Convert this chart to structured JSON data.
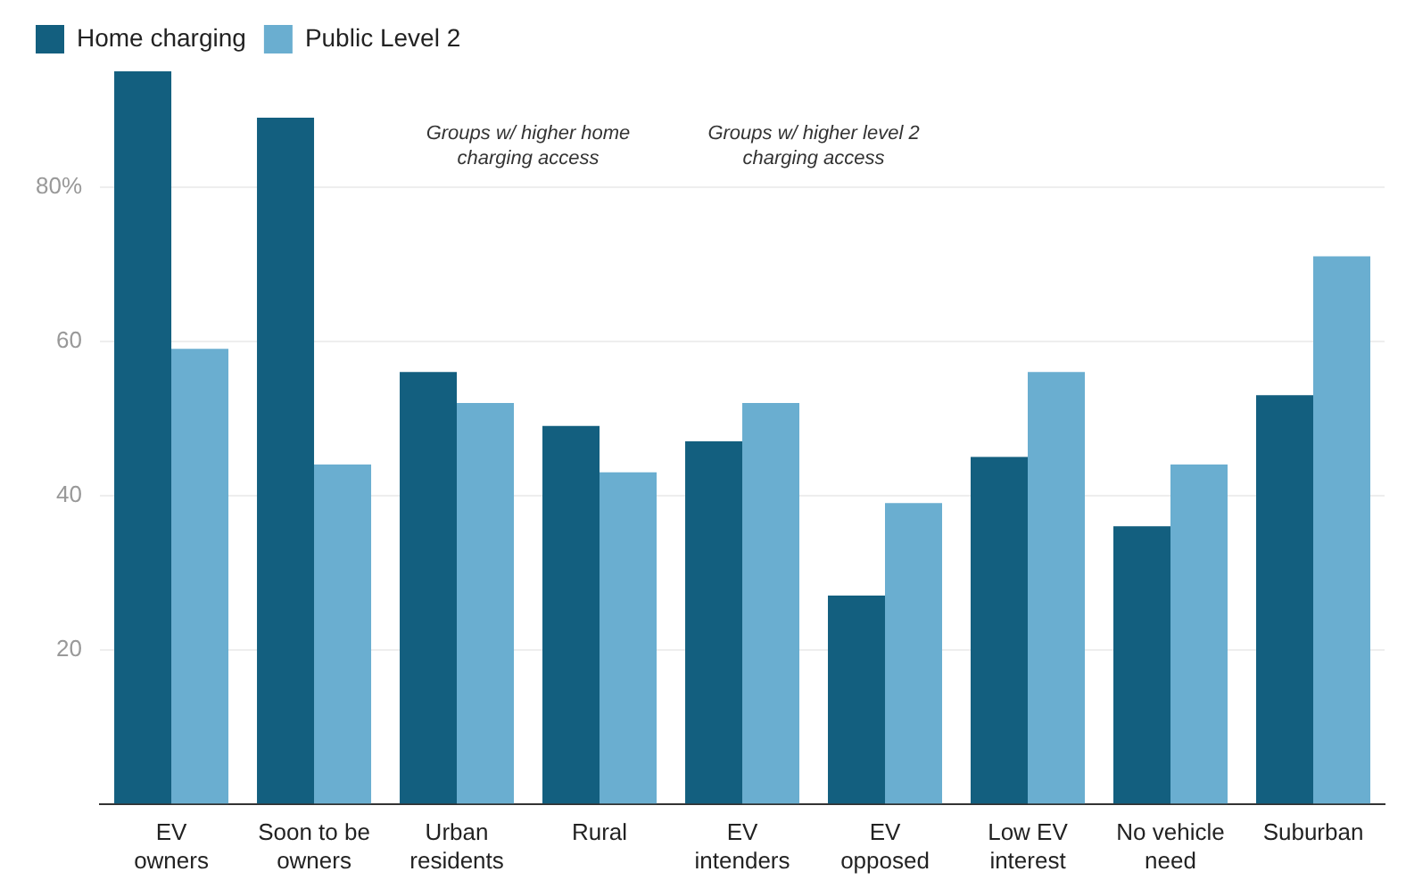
{
  "chart_data": {
    "type": "bar",
    "categories": [
      "EV owners",
      "Soon to be owners",
      "Urban residents",
      "Rural",
      "EV intenders",
      "EV opposed",
      "Low EV interest",
      "No vehicle need",
      "Suburban"
    ],
    "series": [
      {
        "name": "Home charging",
        "color": "#135f7f",
        "values": [
          95,
          89,
          56,
          49,
          47,
          27,
          45,
          36,
          53
        ]
      },
      {
        "name": "Public Level 2",
        "color": "#6aaed0",
        "values": [
          59,
          44,
          52,
          43,
          52,
          39,
          56,
          44,
          71
        ]
      }
    ],
    "ylim": [
      0,
      95
    ],
    "yticks": [
      {
        "value": 20,
        "label": "20"
      },
      {
        "value": 40,
        "label": "40"
      },
      {
        "value": 60,
        "label": "60"
      },
      {
        "value": 80,
        "label": "80%"
      }
    ],
    "grid": "y",
    "legend": "top left",
    "annotations": [
      "Groups w/ higher home charging access",
      "Groups w/ higher level 2 charging access"
    ]
  }
}
